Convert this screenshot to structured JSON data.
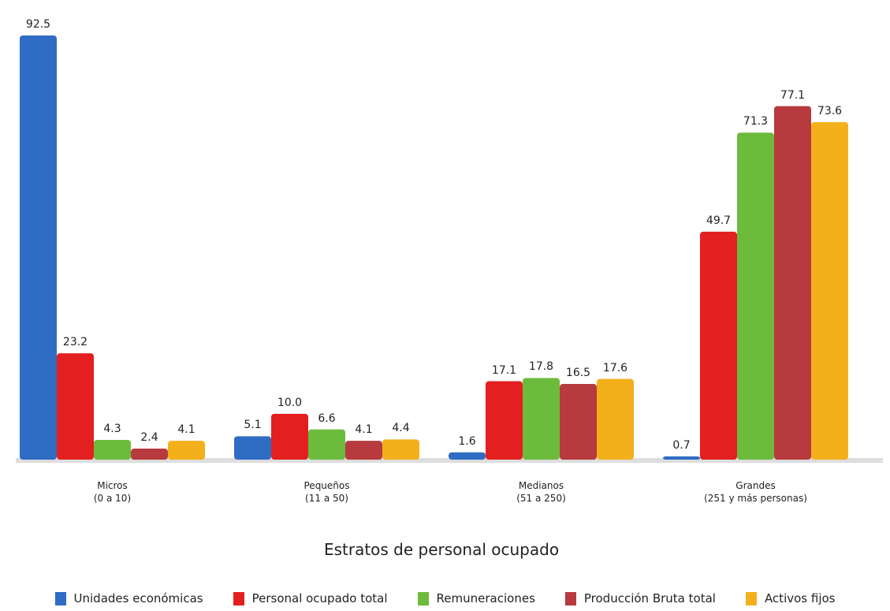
{
  "chart_data": {
    "type": "bar",
    "x_label": "Estratos de personal ocupado",
    "categories": [
      "Micros\n(0 a 10)",
      "Pequeños\n(11 a 50)",
      "Medianos\n(51 a 250)",
      "Grandes\n(251 y más personas)"
    ],
    "series": [
      {
        "name": "Unidades económicas",
        "color": "#2f6cc4",
        "values": [
          92.5,
          5.1,
          1.6,
          0.7
        ],
        "value_labels": [
          "92.5",
          "5.1",
          "1.6",
          "0.7"
        ]
      },
      {
        "name": "Personal ocupado total",
        "color": "#e41f1f",
        "values": [
          23.2,
          10.0,
          17.1,
          49.7
        ],
        "value_labels": [
          "23.2",
          "10.0",
          "17.1",
          "49.7"
        ]
      },
      {
        "name": "Remuneraciones",
        "color": "#6cbb3c",
        "values": [
          4.3,
          6.6,
          17.8,
          71.3
        ],
        "value_labels": [
          "4.3",
          "6.6",
          "17.8",
          "71.3"
        ]
      },
      {
        "name": "Producción Bruta total",
        "color": "#b63a3e",
        "values": [
          2.4,
          4.1,
          16.5,
          77.1
        ],
        "value_labels": [
          "2.4",
          "4.1",
          "16.5",
          "77.1"
        ]
      },
      {
        "name": "Activos fijos",
        "color": "#f4b01b",
        "values": [
          4.1,
          4.4,
          17.6,
          73.6
        ],
        "value_labels": [
          "4.1",
          "4.4",
          "17.6",
          "73.6"
        ]
      }
    ],
    "legend": "bottom"
  }
}
